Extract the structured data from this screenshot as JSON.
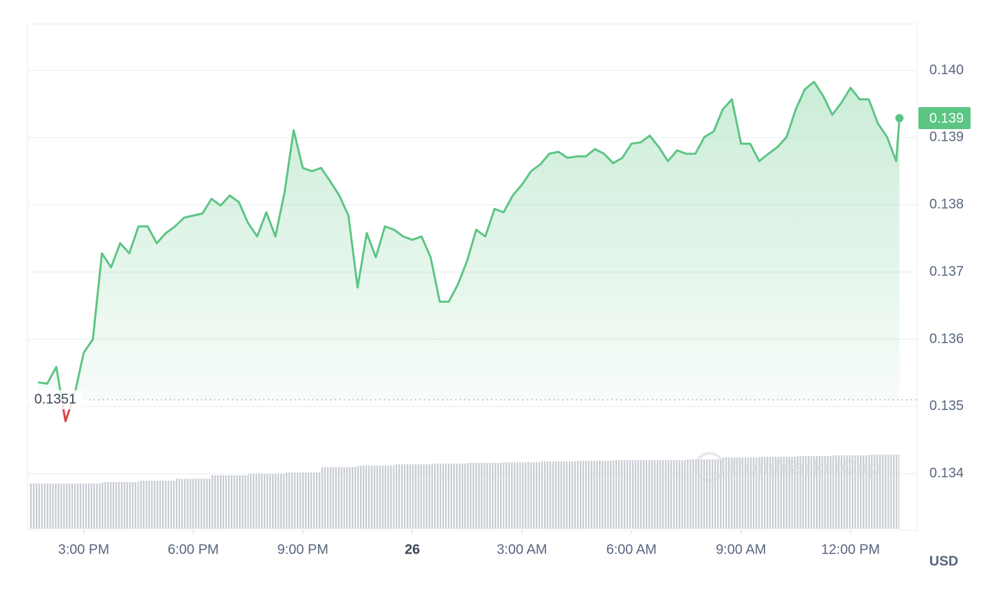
{
  "chart_data": {
    "type": "line",
    "xlim": [
      13.46,
      37.82
    ],
    "ylim": [
      0.13316,
      0.14069
    ],
    "xticks": [
      {
        "value": 15,
        "label": "3:00 PM"
      },
      {
        "value": 18,
        "label": "6:00 PM"
      },
      {
        "value": 21,
        "label": "9:00 PM"
      },
      {
        "value": 24,
        "label": "26"
      },
      {
        "value": 27,
        "label": "3:00 AM"
      },
      {
        "value": 30,
        "label": "6:00 AM"
      },
      {
        "value": 33,
        "label": "9:00 AM"
      },
      {
        "value": 36,
        "label": "12:00 PM"
      }
    ],
    "yticks": [
      {
        "value": 0.14,
        "label": "0.140"
      },
      0.139,
      0.138,
      0.137,
      0.136,
      0.135,
      0.134
    ],
    "grid": true,
    "unit_label": "USD",
    "watermark": "CoinMarketCap",
    "baseline": {
      "value": 0.1351,
      "label": "0.1351"
    },
    "current_price": {
      "value": 0.13929,
      "label": "0.139"
    },
    "series": [
      {
        "color": "#5bc583",
        "down_color": "#d9444a",
        "x": [
          13.75,
          14.0,
          14.25,
          14.5,
          14.75,
          15.0,
          15.25,
          15.5,
          15.75,
          16.0,
          16.25,
          16.5,
          16.75,
          17.0,
          17.25,
          17.5,
          17.75,
          18.0,
          18.25,
          18.5,
          18.75,
          19.0,
          19.25,
          19.5,
          19.75,
          20.0,
          20.25,
          20.5,
          20.75,
          21.0,
          21.25,
          21.5,
          21.75,
          22.0,
          22.25,
          22.5,
          22.75,
          23.0,
          23.25,
          23.5,
          23.75,
          24.0,
          24.25,
          24.5,
          24.75,
          25.0,
          25.25,
          25.5,
          25.75,
          26.0,
          26.25,
          26.5,
          26.75,
          27.0,
          27.25,
          27.5,
          27.75,
          28.0,
          28.25,
          28.5,
          28.75,
          29.0,
          29.25,
          29.5,
          29.75,
          30.0,
          30.25,
          30.5,
          30.75,
          31.0,
          31.25,
          31.5,
          31.75,
          32.0,
          32.25,
          32.5,
          32.75,
          33.0,
          33.25,
          33.5,
          33.75,
          34.0,
          34.25,
          34.5,
          34.75,
          35.0,
          35.25,
          35.5,
          35.75,
          36.0,
          36.25,
          36.5,
          36.75,
          37.0,
          37.25,
          37.34
        ],
        "values": [
          0.13536,
          0.13534,
          0.13559,
          0.13478,
          0.13518,
          0.1358,
          0.136,
          0.13728,
          0.13707,
          0.13743,
          0.13728,
          0.13768,
          0.13768,
          0.13743,
          0.13758,
          0.13768,
          0.13781,
          0.13784,
          0.13787,
          0.13809,
          0.13799,
          0.13814,
          0.13804,
          0.13773,
          0.13753,
          0.13789,
          0.13753,
          0.13819,
          0.13911,
          0.13855,
          0.1385,
          0.13855,
          0.13835,
          0.13814,
          0.13784,
          0.13677,
          0.13758,
          0.13722,
          0.13768,
          0.13763,
          0.13753,
          0.13748,
          0.13753,
          0.13722,
          0.13656,
          0.13656,
          0.13682,
          0.13717,
          0.13763,
          0.13753,
          0.13794,
          0.13789,
          0.13814,
          0.1383,
          0.1385,
          0.1386,
          0.13876,
          0.13879,
          0.1387,
          0.13872,
          0.13872,
          0.13883,
          0.13876,
          0.13862,
          0.1387,
          0.13891,
          0.13893,
          0.13903,
          0.13886,
          0.13865,
          0.13881,
          0.13876,
          0.13876,
          0.13901,
          0.13909,
          0.13942,
          0.13957,
          0.13891,
          0.13891,
          0.13865,
          0.13876,
          0.13886,
          0.13901,
          0.13942,
          0.13972,
          0.13983,
          0.13962,
          0.13934,
          0.13952,
          0.13974,
          0.13957,
          0.13957,
          0.13921,
          0.13901,
          0.13865,
          0.13929
        ]
      }
    ],
    "volume": {
      "color": "#c9cdd4",
      "bins": [
        13.5,
        14.5,
        15.5,
        16.5,
        17.5,
        18.5,
        19.5,
        20.5,
        21.5,
        22.5,
        23.5,
        24.5,
        25.5,
        26.5,
        27.5,
        28.5,
        29.5,
        30.5,
        31.5,
        32.5,
        33.5,
        34.5,
        35.5,
        36.5,
        37.34
      ],
      "values": [
        66,
        66,
        68,
        70,
        73,
        78,
        80,
        82,
        90,
        92,
        94,
        95,
        96,
        97,
        98,
        99,
        100,
        100,
        101,
        104,
        105,
        106,
        107,
        108
      ]
    }
  }
}
